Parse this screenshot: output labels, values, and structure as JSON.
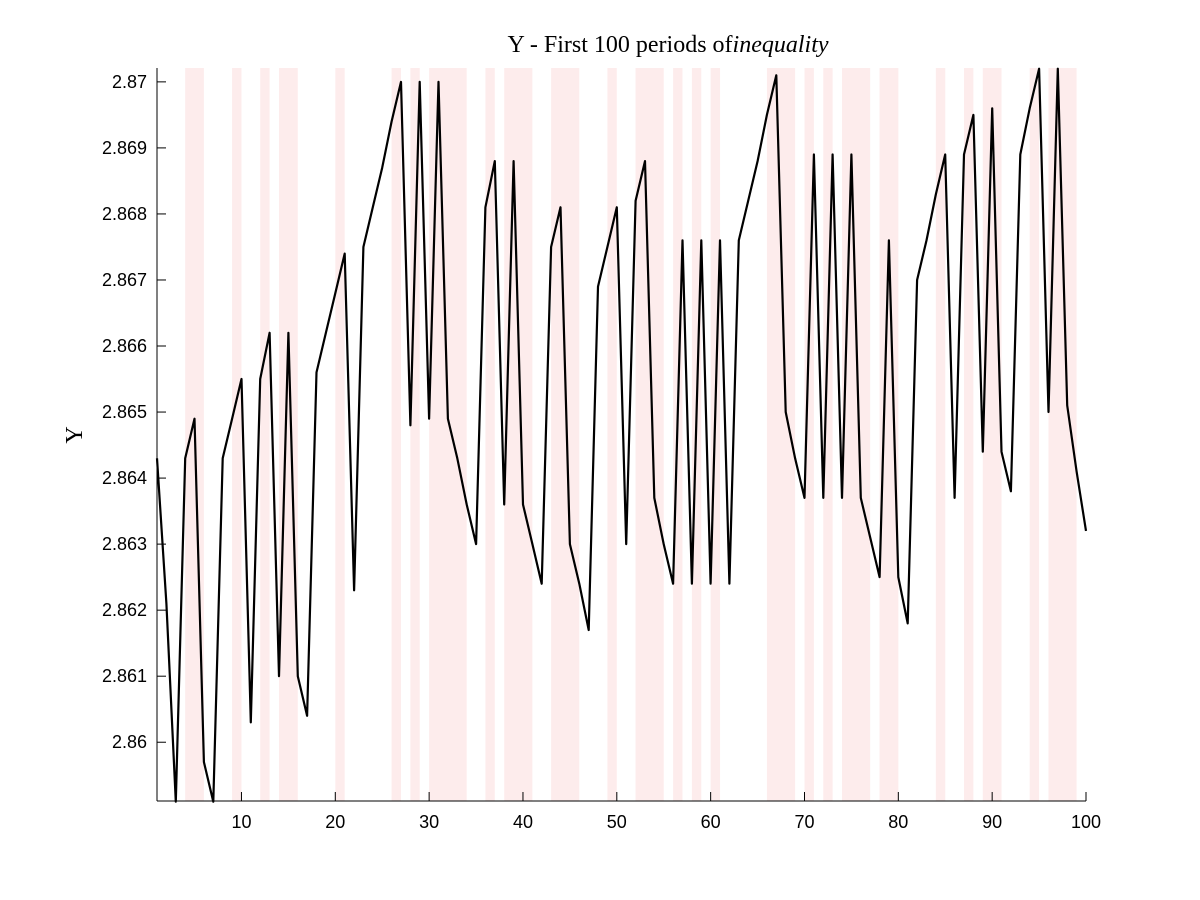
{
  "chart_data": {
    "type": "line",
    "title": "Y - First 100 periods of",
    "title_italic": "inequality",
    "xlabel": "",
    "ylabel": "Y",
    "xlim": [
      1,
      100
    ],
    "ylim": [
      2.85911,
      2.87021
    ],
    "x_ticks": [
      10,
      20,
      30,
      40,
      50,
      60,
      70,
      80,
      90,
      100
    ],
    "y_ticks": [
      2.86,
      2.861,
      2.862,
      2.863,
      2.864,
      2.865,
      2.866,
      2.867,
      2.868,
      2.869,
      2.87
    ],
    "grid": false,
    "line_color": "#000000",
    "shade_color": "#fdecec",
    "shaded_periods": [
      [
        4,
        6
      ],
      [
        9,
        10
      ],
      [
        12,
        13
      ],
      [
        14,
        16
      ],
      [
        20,
        21
      ],
      [
        26,
        27
      ],
      [
        28,
        29
      ],
      [
        30,
        34
      ],
      [
        36,
        37
      ],
      [
        38,
        41
      ],
      [
        43,
        46
      ],
      [
        49,
        50
      ],
      [
        52,
        55
      ],
      [
        56,
        57
      ],
      [
        58,
        59
      ],
      [
        60,
        61
      ],
      [
        66,
        69
      ],
      [
        70,
        71
      ],
      [
        72,
        73
      ],
      [
        74,
        77
      ],
      [
        78,
        80
      ],
      [
        84,
        85
      ],
      [
        87,
        88
      ],
      [
        89,
        91
      ],
      [
        94,
        95
      ],
      [
        96,
        99
      ]
    ],
    "series": [
      {
        "values": [
          [
            1,
            2.8643
          ],
          [
            2,
            2.8621
          ],
          [
            3,
            2.8591
          ],
          [
            4,
            2.8643
          ],
          [
            5,
            2.8649
          ],
          [
            6,
            2.8597
          ],
          [
            7,
            2.8591
          ],
          [
            8,
            2.8643
          ],
          [
            9,
            2.8649
          ],
          [
            10,
            2.8655
          ],
          [
            11,
            2.8603
          ],
          [
            12,
            2.8655
          ],
          [
            13,
            2.8662
          ],
          [
            14,
            2.861
          ],
          [
            15,
            2.8662
          ],
          [
            16,
            2.861
          ],
          [
            17,
            2.8604
          ],
          [
            18,
            2.8656
          ],
          [
            19,
            2.8662
          ],
          [
            20,
            2.8668
          ],
          [
            21,
            2.8674
          ],
          [
            22,
            2.8623
          ],
          [
            23,
            2.8675
          ],
          [
            24,
            2.8681
          ],
          [
            25,
            2.8687
          ],
          [
            26,
            2.8694
          ],
          [
            27,
            2.87
          ],
          [
            28,
            2.8648
          ],
          [
            29,
            2.87
          ],
          [
            30,
            2.8649
          ],
          [
            31,
            2.87
          ],
          [
            32,
            2.8649
          ],
          [
            33,
            2.8643
          ],
          [
            34,
            2.8636
          ],
          [
            35,
            2.863
          ],
          [
            36,
            2.8681
          ],
          [
            37,
            2.8688
          ],
          [
            38,
            2.8636
          ],
          [
            39,
            2.8688
          ],
          [
            40,
            2.8636
          ],
          [
            41,
            2.863
          ],
          [
            42,
            2.8624
          ],
          [
            43,
            2.8675
          ],
          [
            44,
            2.8681
          ],
          [
            45,
            2.863
          ],
          [
            46,
            2.8624
          ],
          [
            47,
            2.8617
          ],
          [
            48,
            2.8669
          ],
          [
            49,
            2.8675
          ],
          [
            50,
            2.8681
          ],
          [
            51,
            2.863
          ],
          [
            52,
            2.8682
          ],
          [
            53,
            2.8688
          ],
          [
            54,
            2.8637
          ],
          [
            55,
            2.863
          ],
          [
            56,
            2.8624
          ],
          [
            57,
            2.8676
          ],
          [
            58,
            2.8624
          ],
          [
            59,
            2.8676
          ],
          [
            60,
            2.8624
          ],
          [
            61,
            2.8676
          ],
          [
            62,
            2.8624
          ],
          [
            63,
            2.8676
          ],
          [
            64,
            2.8682
          ],
          [
            65,
            2.8688
          ],
          [
            66,
            2.8695
          ],
          [
            67,
            2.8701
          ],
          [
            68,
            2.865
          ],
          [
            69,
            2.8643
          ],
          [
            70,
            2.8637
          ],
          [
            71,
            2.8689
          ],
          [
            72,
            2.8637
          ],
          [
            73,
            2.8689
          ],
          [
            74,
            2.8637
          ],
          [
            75,
            2.8689
          ],
          [
            76,
            2.8637
          ],
          [
            77,
            2.8631
          ],
          [
            78,
            2.8625
          ],
          [
            79,
            2.8676
          ],
          [
            80,
            2.8625
          ],
          [
            81,
            2.8618
          ],
          [
            82,
            2.867
          ],
          [
            83,
            2.8676
          ],
          [
            84,
            2.8683
          ],
          [
            85,
            2.8689
          ],
          [
            86,
            2.8637
          ],
          [
            87,
            2.8689
          ],
          [
            88,
            2.8695
          ],
          [
            89,
            2.8644
          ],
          [
            90,
            2.8696
          ],
          [
            91,
            2.8644
          ],
          [
            92,
            2.8638
          ],
          [
            93,
            2.8689
          ],
          [
            94,
            2.8696
          ],
          [
            95,
            2.8702
          ],
          [
            96,
            2.865
          ],
          [
            97,
            2.8702
          ],
          [
            98,
            2.8651
          ],
          [
            99,
            2.8641
          ],
          [
            100,
            2.8632
          ]
        ]
      }
    ]
  }
}
